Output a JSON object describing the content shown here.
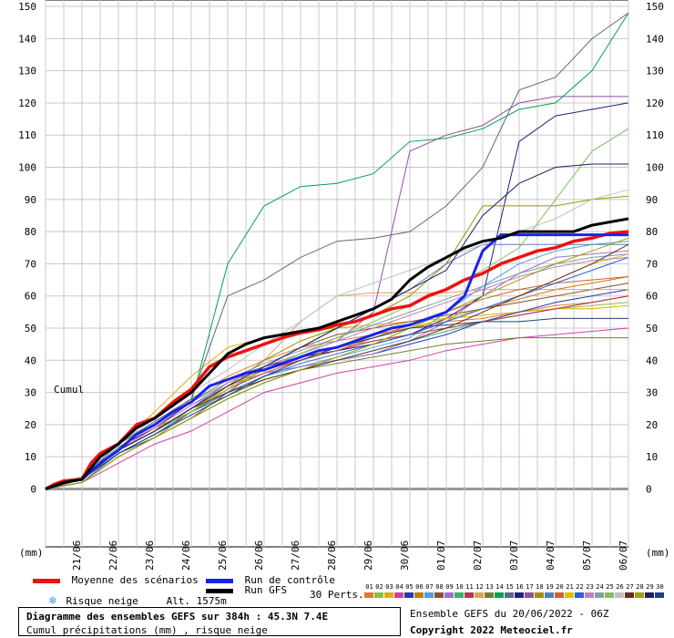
{
  "chart_data": {
    "type": "line",
    "title": "",
    "xlabel": "",
    "ylabel": "",
    "unit_label": "(mm)",
    "inner_label": "Cumul",
    "ylim": [
      -18,
      152
    ],
    "yticks": [
      0,
      10,
      20,
      30,
      40,
      50,
      60,
      70,
      80,
      90,
      100,
      110,
      120,
      130,
      140,
      150
    ],
    "x_range": [
      0,
      16
    ],
    "date_labels": [
      "21/06",
      "22/06",
      "23/06",
      "24/06",
      "25/06",
      "26/06",
      "27/06",
      "28/06",
      "29/06",
      "30/06",
      "01/07",
      "02/07",
      "03/07",
      "04/07",
      "05/07",
      "06/07"
    ],
    "date_positions": [
      1,
      2,
      3,
      4,
      5,
      6,
      7,
      8,
      9,
      10,
      11,
      12,
      13,
      14,
      15,
      16
    ],
    "grid": true,
    "series": [
      {
        "name": "Moyenne des scénarios",
        "role": "mean",
        "color": "#ee1111",
        "x": [
          0,
          0.25,
          0.5,
          1,
          1.25,
          1.5,
          2,
          2.5,
          3,
          3.5,
          4,
          4.5,
          5,
          5.5,
          6,
          6.5,
          7,
          7.5,
          8,
          8.5,
          9,
          9.5,
          10,
          10.5,
          11,
          11.5,
          12,
          12.5,
          13,
          13.5,
          14,
          14.5,
          15,
          15.5,
          16
        ],
        "values": [
          0,
          1.5,
          2.5,
          3,
          8,
          11,
          14,
          20,
          22,
          27,
          31,
          38,
          41,
          43,
          45,
          47,
          48.5,
          49.5,
          51,
          52,
          54,
          56,
          57,
          60,
          62,
          65,
          67,
          70,
          72,
          74,
          75,
          77,
          78,
          79.5,
          80
        ]
      },
      {
        "name": "Run de contrôle",
        "role": "control",
        "color": "#1a22ee",
        "x": [
          0,
          0.5,
          1,
          1.5,
          2,
          2.5,
          3,
          3.5,
          4,
          4.5,
          5,
          5.5,
          6,
          6.5,
          7,
          7.5,
          8,
          8.5,
          9,
          9.5,
          10,
          10.5,
          11,
          11.5,
          12,
          12.5,
          13,
          13.5,
          14,
          14.5,
          15,
          15.5,
          16
        ],
        "values": [
          0,
          2,
          3,
          8,
          12,
          17,
          20,
          24,
          27,
          32,
          34,
          36,
          37,
          39,
          41,
          43,
          44,
          46,
          48,
          50,
          51,
          53,
          55,
          60,
          74,
          79,
          79,
          79,
          79,
          79,
          79,
          79,
          79
        ]
      },
      {
        "name": "Run GFS",
        "role": "gfs",
        "color": "#000000",
        "x": [
          0,
          0.5,
          1,
          1.5,
          2,
          2.5,
          3,
          3.5,
          4,
          4.5,
          5,
          5.5,
          6,
          6.5,
          7,
          7.5,
          8,
          8.5,
          9,
          9.5,
          10,
          10.5,
          11,
          11.5,
          12,
          12.5,
          13,
          13.5,
          14,
          14.5,
          15,
          15.5,
          16
        ],
        "values": [
          0,
          2,
          3,
          10,
          14,
          19,
          22,
          26,
          30,
          36,
          42,
          45,
          47,
          48,
          49,
          50,
          52,
          54,
          56,
          59,
          65,
          69,
          72,
          75,
          77,
          78,
          80,
          80,
          80,
          80,
          82,
          83,
          84
        ]
      },
      {
        "name": "P01",
        "color": "#e07a2e",
        "values": [
          0,
          3,
          12,
          18,
          28,
          35,
          40,
          44,
          46,
          48,
          50,
          52,
          53,
          55,
          57,
          58,
          60
        ]
      },
      {
        "name": "P02",
        "color": "#8fbc3a",
        "values": [
          0,
          3,
          14,
          20,
          27,
          33,
          38,
          41,
          44,
          46,
          48,
          50,
          52,
          54,
          56,
          57,
          58
        ]
      },
      {
        "name": "P03",
        "color": "#d8b000",
        "values": [
          0,
          4,
          14,
          24,
          35,
          44,
          47,
          49,
          50,
          51,
          52,
          53,
          54,
          55,
          56,
          56,
          57
        ]
      },
      {
        "name": "P04",
        "color": "#d040a0",
        "values": [
          0,
          2,
          8,
          14,
          18,
          24,
          30,
          33,
          36,
          38,
          40,
          43,
          45,
          47,
          48,
          49,
          50
        ]
      },
      {
        "name": "P05",
        "color": "#2a3ab0",
        "values": [
          0,
          3,
          11,
          16,
          22,
          28,
          33,
          37,
          40,
          42,
          45,
          48,
          52,
          55,
          58,
          60,
          62
        ]
      },
      {
        "name": "P06",
        "color": "#c87a00",
        "values": [
          0,
          3,
          13,
          19,
          24,
          31,
          36,
          40,
          44,
          47,
          50,
          53,
          56,
          59,
          62,
          64,
          66
        ]
      },
      {
        "name": "P07",
        "color": "#4aa0e0",
        "values": [
          0,
          3,
          12,
          18,
          24,
          30,
          35,
          38,
          41,
          44,
          47,
          55,
          63,
          70,
          74,
          76,
          77
        ]
      },
      {
        "name": "P08",
        "color": "#8a5030",
        "values": [
          0,
          2,
          10,
          16,
          22,
          30,
          38,
          44,
          48,
          50,
          52,
          54,
          56,
          58,
          60,
          62,
          64
        ]
      },
      {
        "name": "P09",
        "color": "#a070d0",
        "values": [
          0,
          3,
          12,
          19,
          26,
          32,
          36,
          38,
          40,
          42,
          46,
          52,
          60,
          67,
          72,
          73,
          74
        ]
      },
      {
        "name": "P10",
        "color": "#3cb070",
        "values": [
          0,
          2,
          10,
          16,
          22,
          28,
          33,
          37,
          40,
          43,
          46,
          49,
          52,
          54,
          56,
          58,
          60
        ]
      },
      {
        "name": "P11",
        "color": "#c03050",
        "values": [
          0,
          3,
          12,
          18,
          25,
          32,
          37,
          40,
          43,
          46,
          48,
          50,
          52,
          54,
          56,
          58,
          60
        ]
      },
      {
        "name": "P12",
        "color": "#e0a060",
        "values": [
          0,
          3,
          12,
          18,
          25,
          31,
          40,
          52,
          60,
          61,
          61,
          61,
          62,
          62,
          62,
          62,
          62
        ]
      },
      {
        "name": "P13",
        "color": "#708030",
        "values": [
          0,
          3,
          11,
          17,
          24,
          29,
          34,
          37,
          39,
          41,
          43,
          45,
          46,
          47,
          47,
          47,
          47
        ]
      },
      {
        "name": "P14",
        "color": "#00a050",
        "values": [
          0,
          3,
          13,
          20,
          27,
          70,
          88,
          94,
          95,
          98,
          108,
          109,
          112,
          118,
          120,
          130,
          148
        ]
      },
      {
        "name": "P15",
        "color": "#606880",
        "values": [
          0,
          3,
          14,
          21,
          28,
          60,
          65,
          72,
          77,
          78,
          80,
          88,
          100,
          124,
          128,
          140,
          148
        ]
      },
      {
        "name": "P16",
        "color": "#202080",
        "values": [
          0,
          3,
          13,
          19,
          27,
          34,
          38,
          41,
          43,
          45,
          48,
          53,
          60,
          108,
          116,
          118,
          120
        ]
      },
      {
        "name": "P17",
        "color": "#9050a0",
        "values": [
          0,
          3,
          12,
          18,
          25,
          32,
          38,
          42,
          46,
          55,
          105,
          110,
          113,
          120,
          122,
          122,
          122
        ]
      },
      {
        "name": "P18",
        "color": "#a09000",
        "values": [
          0,
          2,
          10,
          16,
          24,
          32,
          40,
          46,
          50,
          54,
          60,
          70,
          88,
          88,
          88,
          90,
          91
        ]
      },
      {
        "name": "P19",
        "color": "#5080c0",
        "values": [
          0,
          3,
          12,
          18,
          25,
          33,
          38,
          44,
          50,
          56,
          62,
          70,
          76,
          76,
          76,
          76,
          76
        ]
      },
      {
        "name": "P20",
        "color": "#d06030",
        "values": [
          0,
          3,
          11,
          17,
          24,
          31,
          36,
          40,
          43,
          47,
          51,
          55,
          59,
          62,
          64,
          65,
          66
        ]
      },
      {
        "name": "P21",
        "color": "#e0c000",
        "values": [
          0,
          3,
          12,
          18,
          25,
          32,
          37,
          41,
          44,
          47,
          50,
          53,
          56,
          60,
          65,
          70,
          73
        ]
      },
      {
        "name": "P22",
        "color": "#3060d0",
        "values": [
          0,
          2,
          11,
          17,
          24,
          30,
          35,
          39,
          42,
          45,
          48,
          52,
          56,
          60,
          64,
          68,
          72
        ]
      },
      {
        "name": "P23",
        "color": "#c080c0",
        "values": [
          0,
          3,
          12,
          19,
          26,
          33,
          38,
          42,
          46,
          50,
          54,
          58,
          62,
          66,
          69,
          71,
          72
        ]
      },
      {
        "name": "P24",
        "color": "#80a0a0",
        "values": [
          0,
          3,
          13,
          20,
          27,
          34,
          39,
          43,
          47,
          51,
          55,
          59,
          63,
          67,
          70,
          72,
          73
        ]
      },
      {
        "name": "P25",
        "color": "#80c060",
        "values": [
          0,
          3,
          12,
          18,
          24,
          31,
          37,
          42,
          47,
          52,
          57,
          62,
          68,
          75,
          90,
          105,
          112
        ]
      },
      {
        "name": "P26",
        "color": "#c0c0c0",
        "values": [
          0,
          4,
          14,
          22,
          30,
          37,
          45,
          52,
          60,
          64,
          68,
          72,
          76,
          80,
          84,
          90,
          93
        ]
      },
      {
        "name": "P27",
        "color": "#603020",
        "values": [
          0,
          3,
          12,
          18,
          25,
          30,
          34,
          37,
          40,
          43,
          46,
          50,
          55,
          60,
          65,
          70,
          76
        ]
      },
      {
        "name": "P28",
        "color": "#a0a000",
        "values": [
          0,
          2,
          10,
          16,
          22,
          28,
          33,
          37,
          41,
          45,
          50,
          55,
          60,
          65,
          70,
          74,
          78
        ]
      },
      {
        "name": "P29",
        "color": "#202060",
        "values": [
          0,
          3,
          12,
          18,
          25,
          32,
          38,
          44,
          50,
          56,
          62,
          68,
          85,
          95,
          100,
          101,
          101
        ]
      },
      {
        "name": "P30",
        "color": "#204080",
        "values": [
          0,
          3,
          11,
          17,
          23,
          29,
          35,
          40,
          44,
          47,
          50,
          51,
          52,
          52,
          53,
          53,
          53
        ]
      }
    ]
  },
  "legend": {
    "mean_label": "Moyenne des scénarios",
    "control_label": "Run de contrôle",
    "gfs_label": "Run GFS",
    "snow_label": "Risque neige",
    "altitude_label": "Alt. 1575m",
    "perts_label": "30 Perts.",
    "pert_codes": [
      "01",
      "02",
      "03",
      "04",
      "05",
      "06",
      "07",
      "08",
      "09",
      "10",
      "11",
      "12",
      "13",
      "14",
      "15",
      "16",
      "17",
      "18",
      "19",
      "20",
      "21",
      "22",
      "23",
      "24",
      "25",
      "26",
      "27",
      "28",
      "29",
      "30"
    ],
    "mean_color": "#ee1111",
    "control_color": "#1a22ee",
    "gfs_color": "#000000",
    "snow_color": "#3aa0e8"
  },
  "info": {
    "title": "Diagramme des ensembles GEFS sur 384h : 45.3N 7.4E",
    "subtitle": "Cumul précipitations (mm) , risque neige",
    "run_label": "Ensemble GEFS du 20/06/2022 - 06Z",
    "copyright": "Copyright 2022 Meteociel.fr"
  }
}
